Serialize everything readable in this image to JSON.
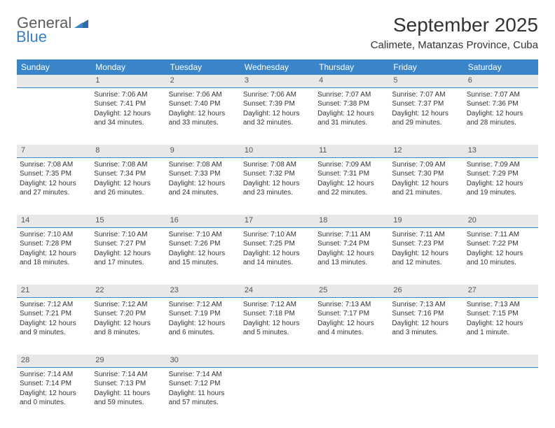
{
  "logo": {
    "general": "General",
    "blue": "Blue"
  },
  "title": "September 2025",
  "subtitle": "Calimete, Matanzas Province, Cuba",
  "colors": {
    "header_bg": "#3a85c7",
    "header_text": "#ffffff",
    "daynum_bg": "#e8e8e8",
    "daynum_border": "#3a85c7",
    "body_text": "#333333",
    "logo_gray": "#5c5c5c",
    "logo_blue": "#3a7fc4"
  },
  "weekdays": [
    "Sunday",
    "Monday",
    "Tuesday",
    "Wednesday",
    "Thursday",
    "Friday",
    "Saturday"
  ],
  "weeks": [
    {
      "days": [
        {
          "num": "",
          "lines": []
        },
        {
          "num": "1",
          "lines": [
            "Sunrise: 7:06 AM",
            "Sunset: 7:41 PM",
            "Daylight: 12 hours",
            "and 34 minutes."
          ]
        },
        {
          "num": "2",
          "lines": [
            "Sunrise: 7:06 AM",
            "Sunset: 7:40 PM",
            "Daylight: 12 hours",
            "and 33 minutes."
          ]
        },
        {
          "num": "3",
          "lines": [
            "Sunrise: 7:06 AM",
            "Sunset: 7:39 PM",
            "Daylight: 12 hours",
            "and 32 minutes."
          ]
        },
        {
          "num": "4",
          "lines": [
            "Sunrise: 7:07 AM",
            "Sunset: 7:38 PM",
            "Daylight: 12 hours",
            "and 31 minutes."
          ]
        },
        {
          "num": "5",
          "lines": [
            "Sunrise: 7:07 AM",
            "Sunset: 7:37 PM",
            "Daylight: 12 hours",
            "and 29 minutes."
          ]
        },
        {
          "num": "6",
          "lines": [
            "Sunrise: 7:07 AM",
            "Sunset: 7:36 PM",
            "Daylight: 12 hours",
            "and 28 minutes."
          ]
        }
      ]
    },
    {
      "days": [
        {
          "num": "7",
          "lines": [
            "Sunrise: 7:08 AM",
            "Sunset: 7:35 PM",
            "Daylight: 12 hours",
            "and 27 minutes."
          ]
        },
        {
          "num": "8",
          "lines": [
            "Sunrise: 7:08 AM",
            "Sunset: 7:34 PM",
            "Daylight: 12 hours",
            "and 26 minutes."
          ]
        },
        {
          "num": "9",
          "lines": [
            "Sunrise: 7:08 AM",
            "Sunset: 7:33 PM",
            "Daylight: 12 hours",
            "and 24 minutes."
          ]
        },
        {
          "num": "10",
          "lines": [
            "Sunrise: 7:08 AM",
            "Sunset: 7:32 PM",
            "Daylight: 12 hours",
            "and 23 minutes."
          ]
        },
        {
          "num": "11",
          "lines": [
            "Sunrise: 7:09 AM",
            "Sunset: 7:31 PM",
            "Daylight: 12 hours",
            "and 22 minutes."
          ]
        },
        {
          "num": "12",
          "lines": [
            "Sunrise: 7:09 AM",
            "Sunset: 7:30 PM",
            "Daylight: 12 hours",
            "and 21 minutes."
          ]
        },
        {
          "num": "13",
          "lines": [
            "Sunrise: 7:09 AM",
            "Sunset: 7:29 PM",
            "Daylight: 12 hours",
            "and 19 minutes."
          ]
        }
      ]
    },
    {
      "days": [
        {
          "num": "14",
          "lines": [
            "Sunrise: 7:10 AM",
            "Sunset: 7:28 PM",
            "Daylight: 12 hours",
            "and 18 minutes."
          ]
        },
        {
          "num": "15",
          "lines": [
            "Sunrise: 7:10 AM",
            "Sunset: 7:27 PM",
            "Daylight: 12 hours",
            "and 17 minutes."
          ]
        },
        {
          "num": "16",
          "lines": [
            "Sunrise: 7:10 AM",
            "Sunset: 7:26 PM",
            "Daylight: 12 hours",
            "and 15 minutes."
          ]
        },
        {
          "num": "17",
          "lines": [
            "Sunrise: 7:10 AM",
            "Sunset: 7:25 PM",
            "Daylight: 12 hours",
            "and 14 minutes."
          ]
        },
        {
          "num": "18",
          "lines": [
            "Sunrise: 7:11 AM",
            "Sunset: 7:24 PM",
            "Daylight: 12 hours",
            "and 13 minutes."
          ]
        },
        {
          "num": "19",
          "lines": [
            "Sunrise: 7:11 AM",
            "Sunset: 7:23 PM",
            "Daylight: 12 hours",
            "and 12 minutes."
          ]
        },
        {
          "num": "20",
          "lines": [
            "Sunrise: 7:11 AM",
            "Sunset: 7:22 PM",
            "Daylight: 12 hours",
            "and 10 minutes."
          ]
        }
      ]
    },
    {
      "days": [
        {
          "num": "21",
          "lines": [
            "Sunrise: 7:12 AM",
            "Sunset: 7:21 PM",
            "Daylight: 12 hours",
            "and 9 minutes."
          ]
        },
        {
          "num": "22",
          "lines": [
            "Sunrise: 7:12 AM",
            "Sunset: 7:20 PM",
            "Daylight: 12 hours",
            "and 8 minutes."
          ]
        },
        {
          "num": "23",
          "lines": [
            "Sunrise: 7:12 AM",
            "Sunset: 7:19 PM",
            "Daylight: 12 hours",
            "and 6 minutes."
          ]
        },
        {
          "num": "24",
          "lines": [
            "Sunrise: 7:12 AM",
            "Sunset: 7:18 PM",
            "Daylight: 12 hours",
            "and 5 minutes."
          ]
        },
        {
          "num": "25",
          "lines": [
            "Sunrise: 7:13 AM",
            "Sunset: 7:17 PM",
            "Daylight: 12 hours",
            "and 4 minutes."
          ]
        },
        {
          "num": "26",
          "lines": [
            "Sunrise: 7:13 AM",
            "Sunset: 7:16 PM",
            "Daylight: 12 hours",
            "and 3 minutes."
          ]
        },
        {
          "num": "27",
          "lines": [
            "Sunrise: 7:13 AM",
            "Sunset: 7:15 PM",
            "Daylight: 12 hours",
            "and 1 minute."
          ]
        }
      ]
    },
    {
      "days": [
        {
          "num": "28",
          "lines": [
            "Sunrise: 7:14 AM",
            "Sunset: 7:14 PM",
            "Daylight: 12 hours",
            "and 0 minutes."
          ]
        },
        {
          "num": "29",
          "lines": [
            "Sunrise: 7:14 AM",
            "Sunset: 7:13 PM",
            "Daylight: 11 hours",
            "and 59 minutes."
          ]
        },
        {
          "num": "30",
          "lines": [
            "Sunrise: 7:14 AM",
            "Sunset: 7:12 PM",
            "Daylight: 11 hours",
            "and 57 minutes."
          ]
        },
        {
          "num": "",
          "lines": []
        },
        {
          "num": "",
          "lines": []
        },
        {
          "num": "",
          "lines": []
        },
        {
          "num": "",
          "lines": []
        }
      ]
    }
  ]
}
